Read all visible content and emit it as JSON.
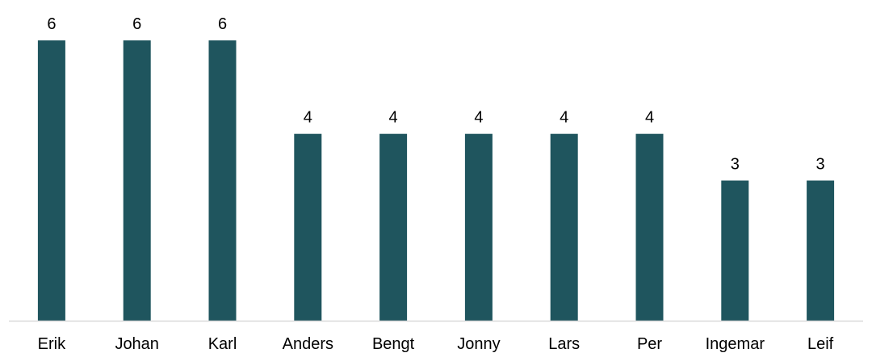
{
  "chart_data": {
    "type": "bar",
    "categories": [
      "Erik",
      "Johan",
      "Karl",
      "Anders",
      "Bengt",
      "Jonny",
      "Lars",
      "Per",
      "Ingemar",
      "Leif"
    ],
    "values": [
      6,
      6,
      6,
      4,
      4,
      4,
      4,
      4,
      3,
      3
    ],
    "title": "",
    "xlabel": "",
    "ylabel": "",
    "ylim": [
      0,
      6
    ],
    "grid": false,
    "legend": "none",
    "data_labels": true,
    "colors": {
      "bar": "#1f555e",
      "axis": "#d9d9d9",
      "text": "#000000"
    }
  }
}
